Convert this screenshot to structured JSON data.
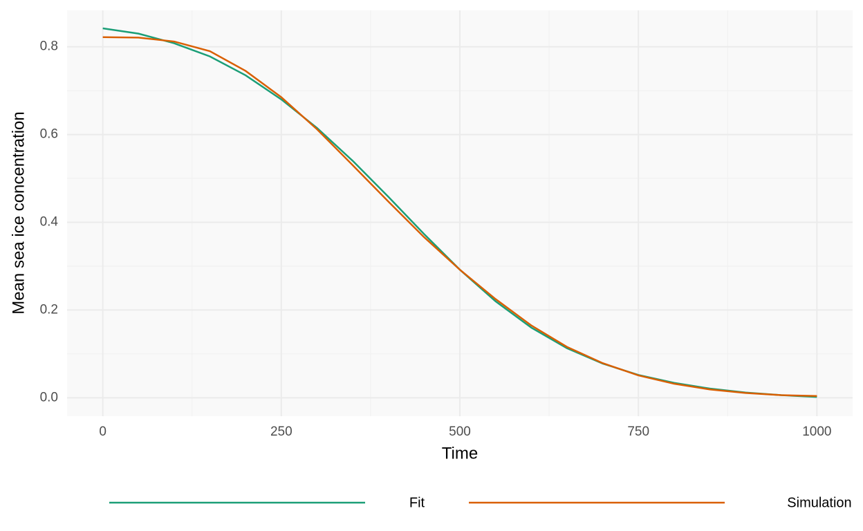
{
  "chart_data": {
    "type": "line",
    "x_label": "Time",
    "y_label": "Mean sea ice concentration",
    "x": [
      0,
      50,
      100,
      150,
      200,
      250,
      300,
      350,
      400,
      450,
      500,
      550,
      600,
      650,
      700,
      750,
      800,
      850,
      900,
      950,
      1000
    ],
    "series": [
      {
        "name": "Fit",
        "color": "#1b9e77",
        "values": [
          0.842,
          0.83,
          0.808,
          0.778,
          0.735,
          0.68,
          0.615,
          0.54,
          0.458,
          0.373,
          0.292,
          0.22,
          0.16,
          0.113,
          0.078,
          0.052,
          0.034,
          0.021,
          0.012,
          0.006,
          0.002
        ]
      },
      {
        "name": "Simulation",
        "color": "#d95f02",
        "values": [
          0.822,
          0.821,
          0.812,
          0.79,
          0.745,
          0.685,
          0.612,
          0.53,
          0.447,
          0.366,
          0.292,
          0.225,
          0.165,
          0.116,
          0.079,
          0.051,
          0.032,
          0.019,
          0.011,
          0.006,
          0.004
        ]
      }
    ],
    "xlim": [
      -50,
      1050
    ],
    "ylim": [
      -0.042,
      0.883
    ],
    "xticks": [
      0,
      250,
      500,
      750,
      1000
    ],
    "yticks": [
      {
        "value": 0,
        "label": "0.0"
      },
      0.2,
      0.4,
      0.6,
      0.8
    ],
    "minor_xticks": [
      125,
      375,
      625,
      875
    ],
    "minor_yticks": [
      0.1,
      0.3,
      0.5,
      0.7
    ],
    "grid": true,
    "legend": "bottom"
  }
}
